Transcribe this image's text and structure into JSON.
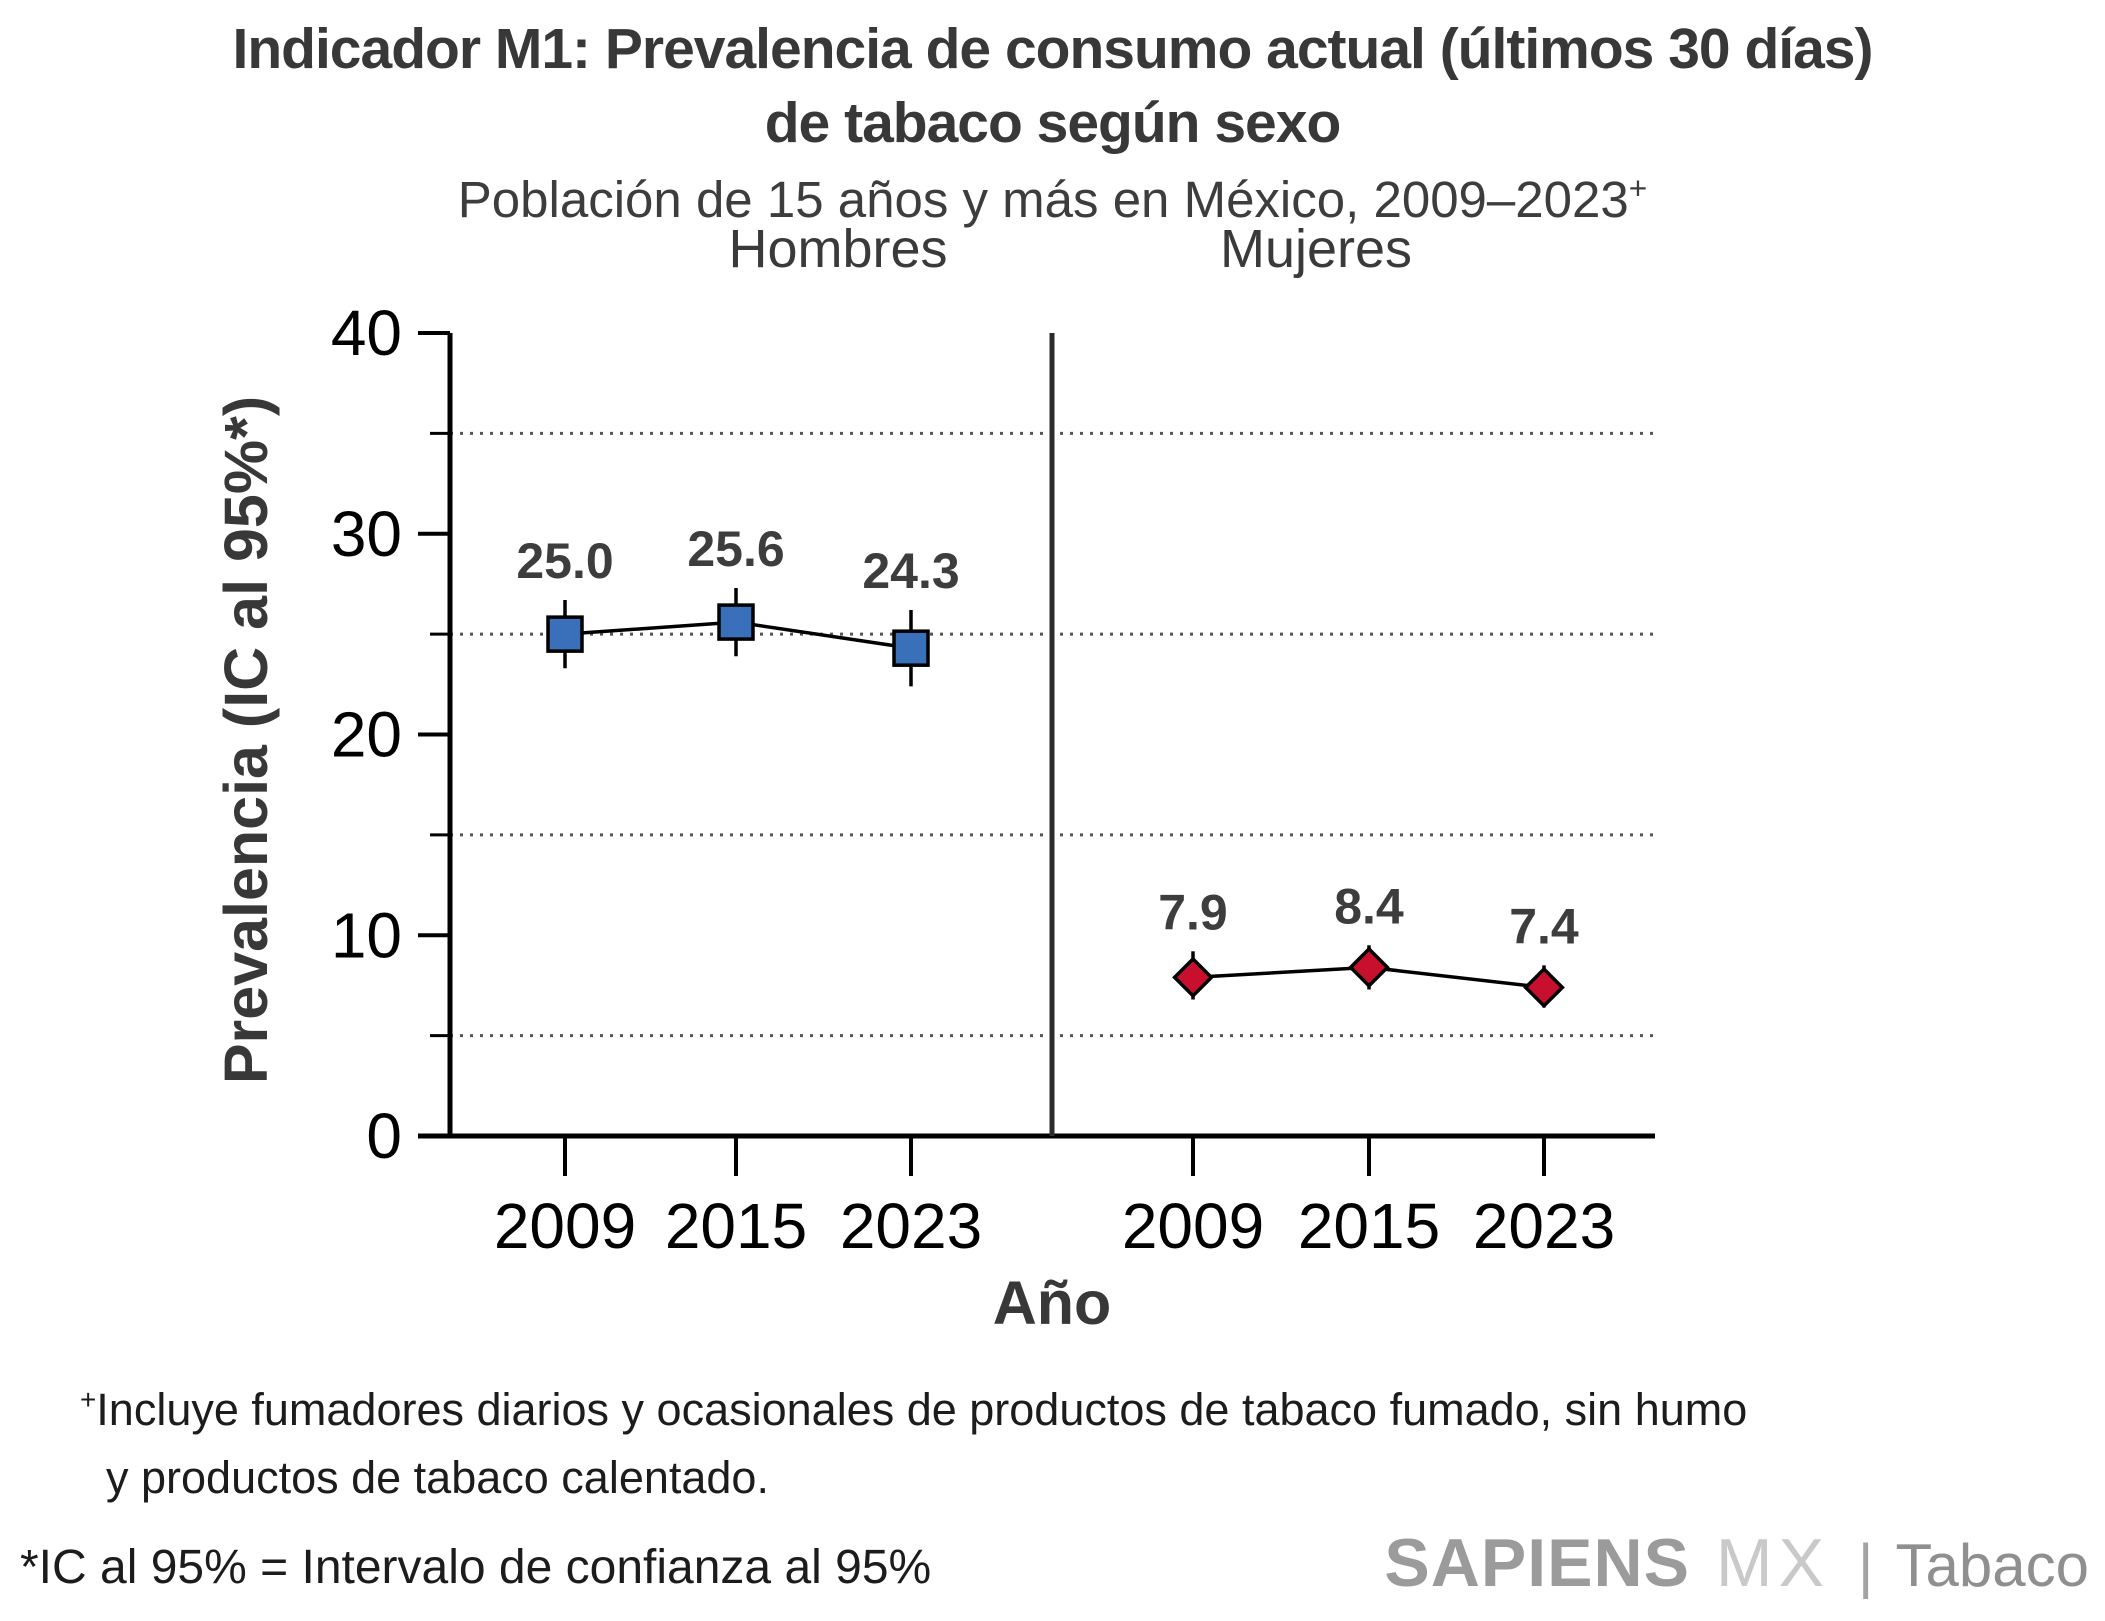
{
  "title": {
    "line1": "Indicador M1: Prevalencia de consumo actual (últimos 30 días)",
    "line2": "de tabaco según sexo"
  },
  "subtitle": {
    "text": "Población de 15 años y más en México, 2009–2023",
    "superscript": "+"
  },
  "panels": {
    "left_label": "Hombres",
    "right_label": "Mujeres"
  },
  "y_axis": {
    "title": "Prevalencia (IC al 95%*)",
    "tick_labels": [
      "0",
      "10",
      "20",
      "30",
      "40"
    ],
    "ticks": [
      0,
      10,
      20,
      30,
      40
    ],
    "minor_gridlines": [
      5,
      15,
      25,
      35
    ]
  },
  "x_axis": {
    "title": "Año",
    "categories": [
      "2009",
      "2015",
      "2023"
    ]
  },
  "chart_data": {
    "type": "line",
    "x": [
      "2009",
      "2015",
      "2023"
    ],
    "ylim": [
      0,
      40
    ],
    "grid": "dotted horizontal at 5, 15, 25, 35",
    "legend_position": "panel headers (Hombres left, Mujeres right)",
    "series": [
      {
        "name": "Hombres",
        "values": [
          25.0,
          25.6,
          24.3
        ],
        "labels": [
          "25.0",
          "25.6",
          "24.3"
        ],
        "ci_low": [
          23.3,
          23.9,
          22.4
        ],
        "ci_high": [
          26.7,
          27.3,
          26.2
        ],
        "marker": "square",
        "marker_color": "#3a70ba",
        "line_color": "#000000"
      },
      {
        "name": "Mujeres",
        "values": [
          7.9,
          8.4,
          7.4
        ],
        "labels": [
          "7.9",
          "8.4",
          "7.4"
        ],
        "ci_low": [
          6.8,
          7.3,
          6.4
        ],
        "ci_high": [
          9.2,
          9.5,
          8.5
        ],
        "marker": "diamond",
        "marker_color": "#c8102e",
        "line_color": "#000000"
      }
    ]
  },
  "colors": {
    "text_dark": "#383838",
    "data_label": "#3d3d3d",
    "axis": "#000000",
    "gridline": "#555555",
    "hombres_marker": "#3a70ba",
    "mujeres_marker": "#c8102e"
  },
  "footnote": {
    "superscript": "+",
    "line1": "Incluye fumadores diarios y ocasionales de productos de tabaco fumado, sin humo",
    "line2": "y productos de tabaco calentado."
  },
  "bottom_note": "*IC al 95% = Intervalo de confianza al 95%",
  "logo": {
    "brand": "SAPIENS",
    "region": "MX",
    "separator": "|",
    "product": "Tabaco"
  }
}
